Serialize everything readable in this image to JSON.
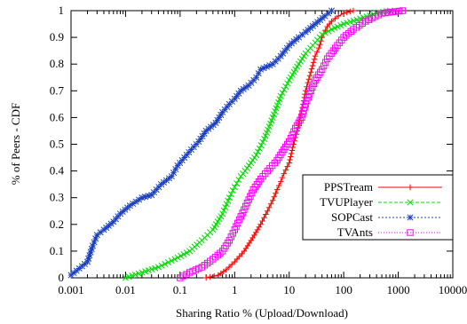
{
  "chart_data": {
    "type": "line",
    "title": "",
    "xlabel": "Sharing Ratio % (Upload/Download)",
    "ylabel": "% of Peers - CDF",
    "xscale": "log",
    "xlim": [
      0.001,
      10000
    ],
    "ylim": [
      0,
      1
    ],
    "xticks": [
      0.001,
      0.01,
      0.1,
      1,
      10,
      100,
      1000,
      10000
    ],
    "xtick_labels": [
      "0.001",
      "0.01",
      "0.1",
      "1",
      "10",
      "100",
      "1000",
      "10000"
    ],
    "yticks": [
      0,
      0.1,
      0.2,
      0.3,
      0.4,
      0.5,
      0.6,
      0.7,
      0.8,
      0.9,
      1
    ],
    "ytick_labels": [
      "0",
      "0.1",
      "0.2",
      "0.3",
      "0.4",
      "0.5",
      "0.6",
      "0.7",
      "0.8",
      "0.9",
      "1"
    ],
    "legend_position": "lower-right",
    "grid": false,
    "series": [
      {
        "name": "PPSTream",
        "color": "#ff0000",
        "marker": "plus",
        "points": [
          [
            0.3,
            0
          ],
          [
            0.5,
            0.01
          ],
          [
            0.7,
            0.03
          ],
          [
            1,
            0.06
          ],
          [
            1.5,
            0.1
          ],
          [
            2,
            0.14
          ],
          [
            3,
            0.2
          ],
          [
            4,
            0.25
          ],
          [
            5,
            0.29
          ],
          [
            6,
            0.33
          ],
          [
            7,
            0.36
          ],
          [
            8,
            0.39
          ],
          [
            10,
            0.43
          ],
          [
            12,
            0.5
          ],
          [
            14,
            0.55
          ],
          [
            16,
            0.6
          ],
          [
            18,
            0.65
          ],
          [
            20,
            0.7
          ],
          [
            22,
            0.73
          ],
          [
            25,
            0.77
          ],
          [
            30,
            0.83
          ],
          [
            35,
            0.86
          ],
          [
            40,
            0.9
          ],
          [
            50,
            0.94
          ],
          [
            60,
            0.96
          ],
          [
            80,
            0.98
          ],
          [
            100,
            0.99
          ],
          [
            150,
            1
          ]
        ]
      },
      {
        "name": "TVUPlayer",
        "color": "#00dd00",
        "marker": "x",
        "points": [
          [
            0.01,
            0
          ],
          [
            0.02,
            0.02
          ],
          [
            0.04,
            0.04
          ],
          [
            0.08,
            0.07
          ],
          [
            0.15,
            0.1
          ],
          [
            0.25,
            0.14
          ],
          [
            0.4,
            0.18
          ],
          [
            0.6,
            0.24
          ],
          [
            0.8,
            0.3
          ],
          [
            1,
            0.34
          ],
          [
            1.3,
            0.38
          ],
          [
            1.7,
            0.41
          ],
          [
            2.5,
            0.46
          ],
          [
            3.5,
            0.52
          ],
          [
            5,
            0.6
          ],
          [
            7,
            0.68
          ],
          [
            10,
            0.74
          ],
          [
            15,
            0.8
          ],
          [
            20,
            0.84
          ],
          [
            30,
            0.88
          ],
          [
            40,
            0.91
          ],
          [
            60,
            0.93
          ],
          [
            100,
            0.95
          ],
          [
            200,
            0.97
          ],
          [
            400,
            0.99
          ],
          [
            700,
            1
          ]
        ]
      },
      {
        "name": "SOPCast",
        "color": "#1a3fbf",
        "marker": "star",
        "points": [
          [
            0.001,
            0.01
          ],
          [
            0.002,
            0.06
          ],
          [
            0.0025,
            0.12
          ],
          [
            0.003,
            0.16
          ],
          [
            0.004,
            0.18
          ],
          [
            0.006,
            0.21
          ],
          [
            0.008,
            0.24
          ],
          [
            0.012,
            0.27
          ],
          [
            0.02,
            0.3
          ],
          [
            0.03,
            0.31
          ],
          [
            0.045,
            0.35
          ],
          [
            0.07,
            0.38
          ],
          [
            0.09,
            0.42
          ],
          [
            0.12,
            0.45
          ],
          [
            0.16,
            0.48
          ],
          [
            0.22,
            0.51
          ],
          [
            0.3,
            0.55
          ],
          [
            0.45,
            0.58
          ],
          [
            0.6,
            0.62
          ],
          [
            0.8,
            0.65
          ],
          [
            1,
            0.67
          ],
          [
            1.3,
            0.7
          ],
          [
            1.8,
            0.72
          ],
          [
            2.5,
            0.75
          ],
          [
            3,
            0.78
          ],
          [
            5,
            0.8
          ],
          [
            7,
            0.83
          ],
          [
            10,
            0.87
          ],
          [
            15,
            0.9
          ],
          [
            20,
            0.92
          ],
          [
            30,
            0.95
          ],
          [
            45,
            0.98
          ],
          [
            60,
            1
          ]
        ]
      },
      {
        "name": "TVAnts",
        "color": "#ff00ff",
        "marker": "square",
        "points": [
          [
            0.1,
            0
          ],
          [
            0.15,
            0.02
          ],
          [
            0.25,
            0.04
          ],
          [
            0.4,
            0.07
          ],
          [
            0.6,
            0.1
          ],
          [
            0.8,
            0.14
          ],
          [
            1,
            0.18
          ],
          [
            1.3,
            0.23
          ],
          [
            1.7,
            0.28
          ],
          [
            2.2,
            0.33
          ],
          [
            3,
            0.37
          ],
          [
            4,
            0.4
          ],
          [
            6,
            0.44
          ],
          [
            8,
            0.48
          ],
          [
            10,
            0.51
          ],
          [
            13,
            0.56
          ],
          [
            17,
            0.6
          ],
          [
            20,
            0.65
          ],
          [
            25,
            0.7
          ],
          [
            30,
            0.74
          ],
          [
            40,
            0.78
          ],
          [
            50,
            0.82
          ],
          [
            70,
            0.86
          ],
          [
            100,
            0.9
          ],
          [
            150,
            0.93
          ],
          [
            250,
            0.96
          ],
          [
            500,
            0.99
          ],
          [
            1200,
            1
          ]
        ]
      }
    ]
  }
}
